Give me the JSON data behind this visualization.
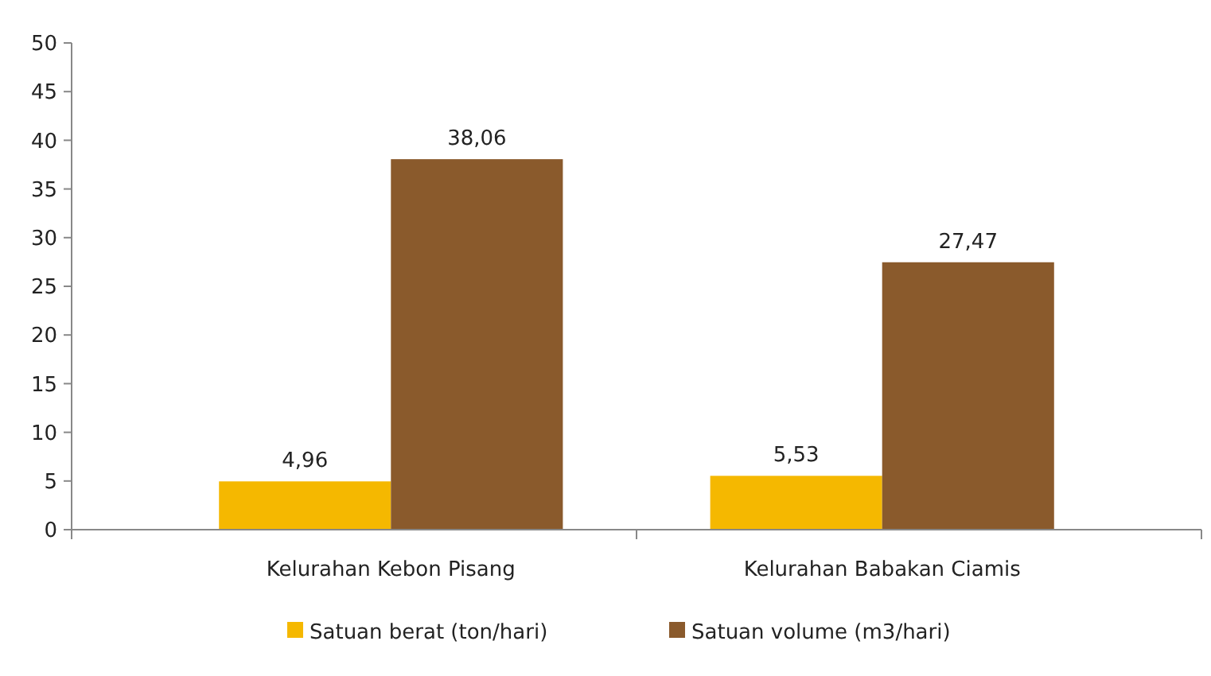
{
  "chart_data": {
    "type": "bar",
    "categories": [
      "Kelurahan Kebon Pisang",
      "Kelurahan Babakan Ciamis"
    ],
    "series": [
      {
        "name": "Satuan berat (ton/hari)",
        "color": "#f5b800",
        "values": [
          4.96,
          5.53
        ],
        "value_labels": [
          "4,96",
          "5,53"
        ]
      },
      {
        "name": "Satuan volume (m3/hari)",
        "color": "#8a5a2c",
        "values": [
          38.06,
          27.47
        ],
        "value_labels": [
          "38,06",
          "27,47"
        ]
      }
    ],
    "ylim": [
      0,
      50
    ],
    "yticks": [
      0,
      5,
      10,
      15,
      20,
      25,
      30,
      35,
      40,
      45,
      50
    ],
    "grid": false,
    "legend": "bottom"
  }
}
